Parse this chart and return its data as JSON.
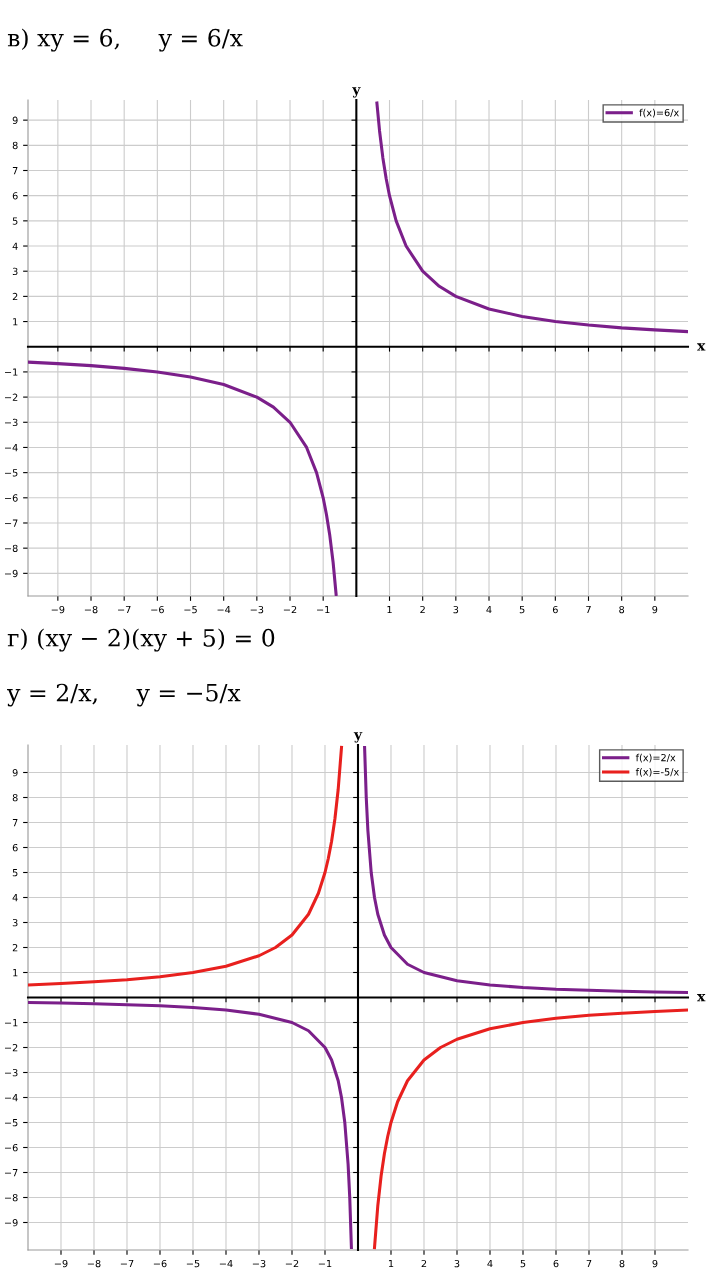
{
  "chart_data": [
    {
      "type": "line",
      "title": "в) xy = 6,     y = 6/x",
      "xlabel": "x",
      "ylabel": "y",
      "xlim": [
        -9.9,
        10
      ],
      "ylim": [
        -9.9,
        9.8
      ],
      "xticks": [
        -9,
        -8,
        -7,
        -6,
        -5,
        -4,
        -3,
        -2,
        -1,
        1,
        2,
        3,
        4,
        5,
        6,
        7,
        8,
        9
      ],
      "yticks": [
        -9,
        -8,
        -7,
        -6,
        -5,
        -4,
        -3,
        -2,
        -1,
        1,
        2,
        3,
        4,
        5,
        6,
        7,
        8,
        9
      ],
      "grid": true,
      "legend": "top right",
      "series": [
        {
          "name": "f(x)=6/x",
          "color": "#7b1f8a",
          "x": [
            -9.9,
            -9,
            -8,
            -7,
            -6,
            -5,
            -4,
            -3,
            -2.5,
            -2,
            -1.5,
            -1.2,
            -1,
            -0.9,
            -0.8,
            -0.7,
            -0.61,
            null,
            0.62,
            0.7,
            0.8,
            0.9,
            1,
            1.2,
            1.5,
            2,
            2.5,
            3,
            4,
            5,
            6,
            7,
            8,
            9,
            10
          ],
          "values": [
            -0.61,
            -0.67,
            -0.75,
            -0.86,
            -1,
            -1.2,
            -1.5,
            -2,
            -2.4,
            -3,
            -4,
            -5,
            -6,
            -6.67,
            -7.5,
            -8.57,
            -9.84,
            null,
            9.68,
            8.57,
            7.5,
            6.67,
            6,
            5,
            4,
            3,
            2.4,
            2,
            1.5,
            1.2,
            1,
            0.86,
            0.75,
            0.67,
            0.6
          ]
        }
      ]
    },
    {
      "type": "line",
      "title": "г) (xy − 2)(xy + 5) = 0",
      "subtitle": "y = 2/x,     y = −5/x",
      "xlabel": "x",
      "ylabel": "y",
      "xlim": [
        -10,
        10
      ],
      "ylim": [
        -10.1,
        10.1
      ],
      "xticks": [
        -9,
        -8,
        -7,
        -6,
        -5,
        -4,
        -3,
        -2,
        -1,
        1,
        2,
        3,
        4,
        5,
        6,
        7,
        8,
        9
      ],
      "yticks": [
        -9,
        -8,
        -7,
        -6,
        -5,
        -4,
        -3,
        -2,
        -1,
        1,
        2,
        3,
        4,
        5,
        6,
        7,
        8,
        9
      ],
      "grid": true,
      "legend": "top right",
      "series": [
        {
          "name": "f(x)=2/x",
          "color": "#7b1f8a",
          "x": [
            -10,
            -9,
            -8,
            -7,
            -6,
            -5,
            -4,
            -3,
            -2,
            -1.5,
            -1,
            -0.8,
            -0.6,
            -0.5,
            -0.4,
            -0.3,
            -0.25,
            -0.2,
            null,
            0.2,
            0.25,
            0.3,
            0.4,
            0.5,
            0.6,
            0.8,
            1,
            1.5,
            2,
            3,
            4,
            5,
            6,
            7,
            8,
            9,
            10
          ],
          "values": [
            -0.2,
            -0.22,
            -0.25,
            -0.29,
            -0.33,
            -0.4,
            -0.5,
            -0.67,
            -1,
            -1.33,
            -2,
            -2.5,
            -3.33,
            -4,
            -5,
            -6.67,
            -8,
            -10,
            null,
            10,
            8,
            6.67,
            5,
            4,
            3.33,
            2.5,
            2,
            1.33,
            1,
            0.67,
            0.5,
            0.4,
            0.33,
            0.29,
            0.25,
            0.22,
            0.2
          ]
        },
        {
          "name": "f(x)=-5/x",
          "color": "#e8201e",
          "x": [
            -10,
            -9,
            -8,
            -7,
            -6,
            -5,
            -4,
            -3,
            -2.5,
            -2,
            -1.5,
            -1.2,
            -1,
            -0.9,
            -0.8,
            -0.7,
            -0.6,
            -0.5,
            null,
            0.5,
            0.6,
            0.7,
            0.8,
            0.9,
            1,
            1.2,
            1.5,
            2,
            2.5,
            3,
            4,
            5,
            6,
            7,
            8,
            9,
            10
          ],
          "values": [
            0.5,
            0.56,
            0.63,
            0.71,
            0.83,
            1,
            1.25,
            1.67,
            2,
            2.5,
            3.33,
            4.17,
            5,
            5.56,
            6.25,
            7.14,
            8.33,
            10,
            null,
            -10,
            -8.33,
            -7.14,
            -6.25,
            -5.56,
            -5,
            -4.17,
            -3.33,
            -2.5,
            -2,
            -1.67,
            -1.25,
            -1,
            -0.83,
            -0.71,
            -0.63,
            -0.56,
            -0.5
          ]
        }
      ]
    }
  ]
}
